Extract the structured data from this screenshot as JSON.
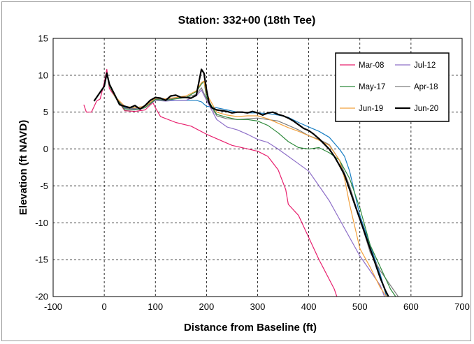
{
  "chart_data": {
    "type": "line",
    "title": "Station: 332+00 (18th Tee)",
    "xlabel": "Distance from Baseline (ft)",
    "ylabel": "Elevation (ft NAVD)",
    "xlim": [
      -100,
      700
    ],
    "ylim": [
      -20,
      15
    ],
    "xticks": [
      -100,
      0,
      100,
      200,
      300,
      400,
      500,
      600,
      700
    ],
    "yticks": [
      -20,
      -15,
      -10,
      -5,
      0,
      5,
      10,
      15
    ],
    "grid": "dashed",
    "legend_position": "top-right",
    "series": [
      {
        "name": "Mar-08",
        "color": "#e8206e",
        "width": 1.2,
        "x": [
          -40,
          -35,
          -30,
          -25,
          -15,
          -8,
          0,
          5,
          10,
          20,
          40,
          60,
          80,
          95,
          100,
          110,
          140,
          170,
          200,
          250,
          300,
          320,
          340,
          355,
          360,
          380,
          400,
          420,
          450,
          455
        ],
        "y": [
          6,
          5,
          5,
          5,
          6.5,
          6.8,
          9,
          10.8,
          8.2,
          7.2,
          5.2,
          5.1,
          5.3,
          6.3,
          5.6,
          4.4,
          3.6,
          3.1,
          2,
          0.5,
          -0.3,
          -1,
          -2.8,
          -5.5,
          -7.5,
          -9,
          -12,
          -15,
          -19,
          -20
        ]
      },
      {
        "name": "Jul-12",
        "color": "#8e6fc8",
        "width": 1.2,
        "x": [
          -20,
          0,
          5,
          10,
          20,
          40,
          60,
          80,
          100,
          120,
          140,
          160,
          180,
          190,
          200,
          220,
          240,
          260,
          280,
          300,
          320,
          340,
          360,
          380,
          400,
          420,
          440,
          460,
          480,
          500,
          520,
          540,
          548
        ],
        "y": [
          6.5,
          8.5,
          10,
          8.8,
          7.2,
          5.5,
          5.4,
          5.6,
          6.6,
          6.5,
          6.6,
          6.6,
          7.2,
          8,
          6.6,
          4,
          3,
          2.6,
          2,
          1.3,
          0.9,
          0,
          -1,
          -2,
          -3,
          -5,
          -7,
          -9.5,
          -12,
          -14.5,
          -16.5,
          -18.5,
          -20
        ]
      },
      {
        "name": "May-17",
        "color": "#2f8a3c",
        "width": 1.2,
        "x": [
          -20,
          0,
          5,
          10,
          20,
          40,
          60,
          80,
          100,
          120,
          140,
          160,
          180,
          190,
          195,
          200,
          220,
          240,
          260,
          280,
          300,
          320,
          340,
          360,
          380,
          400,
          420,
          440,
          460,
          480,
          500,
          520,
          540,
          560,
          570
        ],
        "y": [
          6.5,
          8.5,
          10.2,
          8.6,
          7.2,
          5.3,
          5.3,
          5.6,
          6.7,
          6.6,
          6.8,
          7,
          7.8,
          8.8,
          9.2,
          7,
          4.7,
          4.3,
          4,
          4,
          3.8,
          3.2,
          2.2,
          1,
          0.2,
          0,
          0.2,
          -0.5,
          -1.5,
          -4,
          -8,
          -13,
          -16,
          -19,
          -20
        ]
      },
      {
        "name": "Apr-18",
        "color": "#7d7d7d",
        "width": 1.2,
        "x": [
          -20,
          0,
          5,
          10,
          20,
          40,
          60,
          80,
          100,
          120,
          140,
          160,
          180,
          190,
          200,
          220,
          240,
          260,
          280,
          300,
          320,
          340,
          360,
          380,
          400,
          420,
          440,
          460,
          480,
          500,
          520,
          540,
          560,
          575
        ],
        "y": [
          6.5,
          8.5,
          10,
          8.8,
          7.2,
          5.5,
          5.5,
          5.8,
          6.8,
          6.7,
          6.9,
          7,
          7.4,
          8.3,
          6.8,
          4.5,
          4.1,
          4,
          4.1,
          4.2,
          4,
          3.8,
          3.2,
          2.6,
          1.8,
          1.3,
          0.6,
          -1.5,
          -5,
          -9.5,
          -14,
          -16.5,
          -18.5,
          -20
        ]
      },
      {
        "name": "Jun-19",
        "color": "#f2a03c",
        "width": 1.2,
        "x": [
          -20,
          0,
          5,
          10,
          20,
          40,
          60,
          80,
          100,
          120,
          140,
          160,
          180,
          190,
          195,
          200,
          220,
          240,
          260,
          280,
          300,
          320,
          340,
          360,
          380,
          400,
          420,
          440,
          460,
          470,
          480,
          500,
          520,
          540,
          552
        ],
        "y": [
          6.5,
          8.5,
          10.3,
          8.8,
          7.2,
          5.8,
          5.6,
          5.8,
          6.9,
          6.8,
          7,
          7.2,
          7.9,
          9,
          9.2,
          7.5,
          5,
          4.6,
          4.4,
          4.5,
          4.5,
          4.1,
          3.5,
          2.9,
          2.4,
          1.8,
          1.2,
          0.5,
          -1.5,
          -4,
          -7.5,
          -13.5,
          -16,
          -18.8,
          -20
        ]
      },
      {
        "name": "Jun-20",
        "color": "#000000",
        "width": 2.2,
        "x": [
          -20,
          0,
          5,
          10,
          20,
          30,
          40,
          50,
          60,
          70,
          80,
          90,
          100,
          110,
          120,
          130,
          140,
          150,
          160,
          170,
          180,
          190,
          195,
          200,
          205,
          210,
          220,
          230,
          240,
          250,
          260,
          270,
          280,
          290,
          300,
          310,
          320,
          330,
          340,
          350,
          360,
          370,
          380,
          390,
          400,
          410,
          420,
          430,
          440,
          450,
          460,
          470,
          480,
          490,
          500,
          510,
          520,
          530,
          540,
          550,
          556
        ],
        "y": [
          6.5,
          8.5,
          10.3,
          8.8,
          7.4,
          6,
          5.8,
          5.6,
          5.9,
          5.4,
          5.9,
          6.6,
          7,
          6.9,
          6.6,
          7.2,
          7.3,
          7,
          7,
          6.9,
          7.3,
          10.8,
          10.3,
          8,
          6.3,
          5.6,
          5.3,
          5.2,
          5.1,
          4.9,
          5,
          5,
          4.9,
          5.1,
          4.9,
          4.6,
          4.9,
          5,
          4.7,
          4.5,
          4.2,
          3.8,
          3.3,
          2.8,
          2.5,
          2,
          1.4,
          0.7,
          0,
          -1,
          -2.2,
          -3.5,
          -5.5,
          -7.5,
          -9.5,
          -11.5,
          -13.5,
          -15.5,
          -17.5,
          -19.2,
          -20
        ]
      },
      {
        "name": "",
        "color": "#1a7fc4",
        "width": 1.2,
        "x": [
          -20,
          0,
          5,
          10,
          20,
          40,
          60,
          80,
          100,
          120,
          140,
          160,
          180,
          190,
          200,
          220,
          240,
          260,
          280,
          300,
          320,
          340,
          360,
          380,
          400,
          420,
          440,
          460,
          470,
          480,
          490,
          500,
          520,
          540,
          552
        ],
        "y": [
          6.5,
          8.5,
          10.2,
          8.8,
          7.2,
          5.6,
          5.6,
          5.8,
          6.8,
          6.7,
          6.6,
          6.6,
          6.6,
          6.4,
          5.8,
          5.6,
          5.3,
          5,
          4.9,
          4.9,
          4.8,
          4.6,
          4.3,
          3.6,
          3,
          2.4,
          1.6,
          0,
          -1,
          -3,
          -6,
          -9,
          -13,
          -17,
          -20
        ]
      }
    ]
  }
}
